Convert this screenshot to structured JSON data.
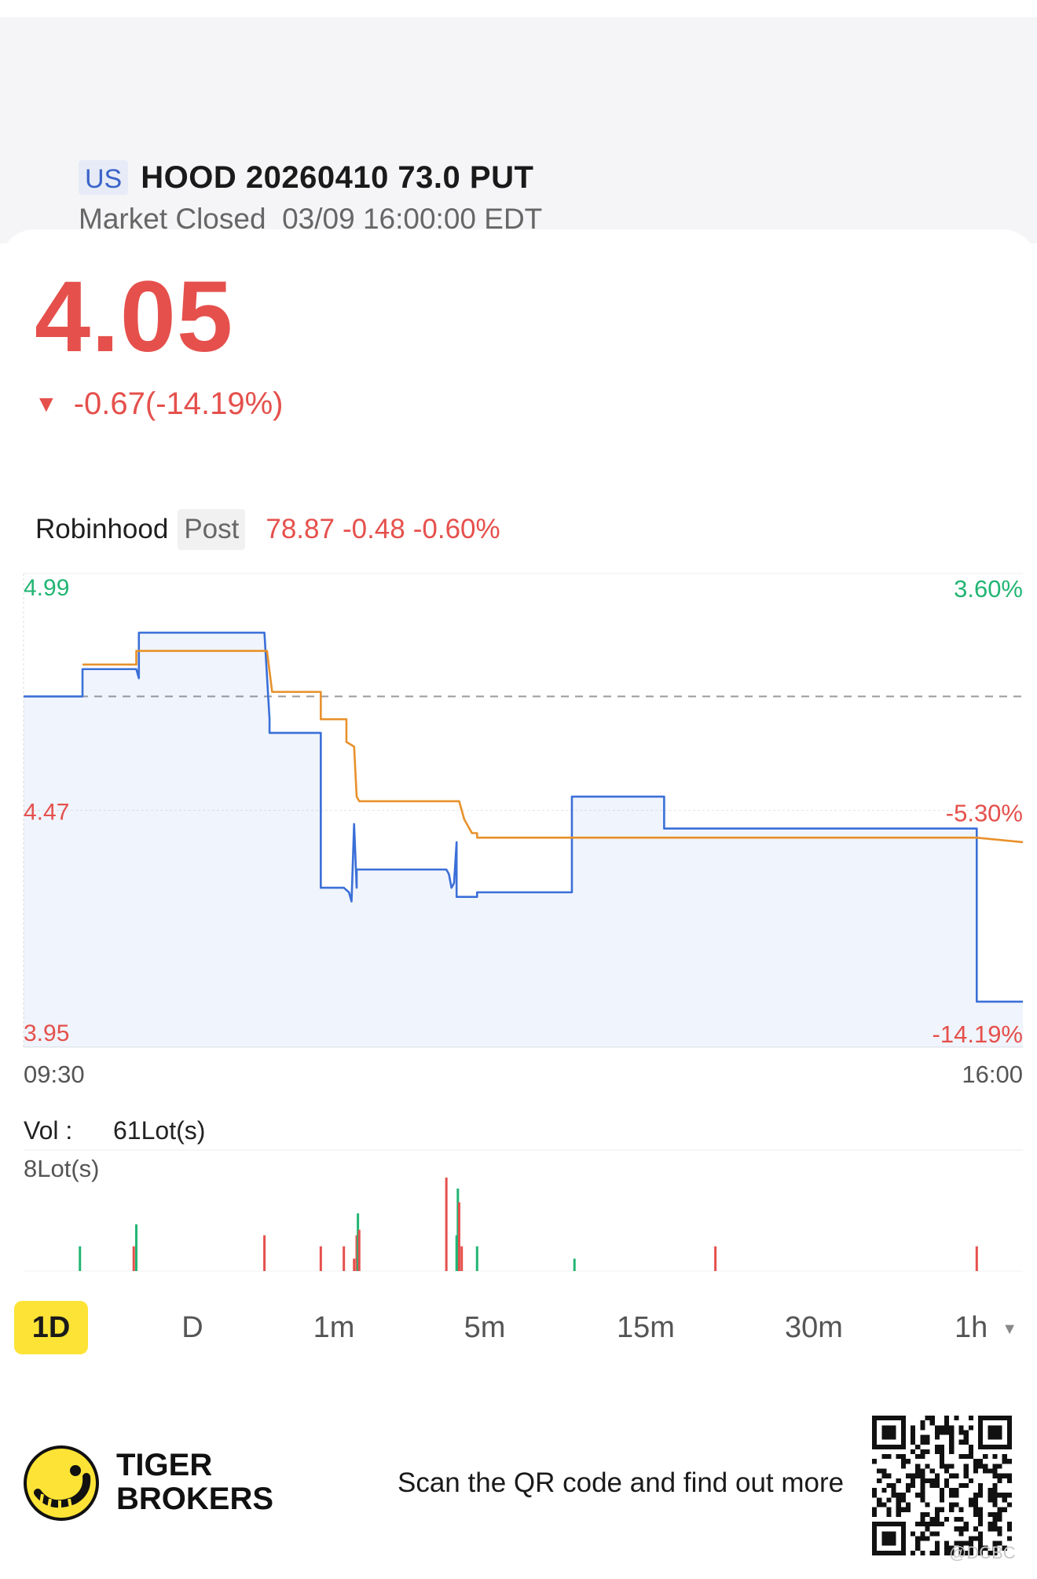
{
  "header": {
    "market": "US",
    "title": "HOOD 20260410 73.0 PUT",
    "status": "Market Closed",
    "timestamp": "03/09 16:00:00 EDT"
  },
  "quote": {
    "price": "4.05",
    "change": "-0.67(-14.19%)",
    "direction": "down",
    "color": "#e5504c"
  },
  "underlying": {
    "name": "Robinhood",
    "session": "Post",
    "price": "78.87",
    "change": "-0.48",
    "change_pct": "-0.60%"
  },
  "chart_data": {
    "type": "line",
    "x_start": "09:30",
    "x_end": "16:00",
    "ylim": [
      3.95,
      4.99
    ],
    "y_ticks_left": [
      "4.99",
      "4.47",
      "3.95"
    ],
    "y_ticks_right": [
      "3.60%",
      "-5.30%",
      "-14.19%"
    ],
    "prev_close": 4.72,
    "grid": true,
    "series": [
      {
        "color": "#3a6fd8",
        "fill": true,
        "x": [
          "09:30",
          "09:53",
          "09:53",
          "10:14",
          "10:15",
          "10:15",
          "11:04",
          "11:06",
          "11:06",
          "11:26",
          "11:26",
          "11:35",
          "11:37",
          "11:38",
          "11:39",
          "11:40",
          "11:40",
          "12:15",
          "12:16",
          "12:17",
          "12:18",
          "12:19",
          "12:19",
          "12:27",
          "12:27",
          "13:04",
          "13:04",
          "13:40",
          "13:40",
          "15:42",
          "15:42",
          "16:00"
        ],
        "values": [
          4.72,
          4.72,
          4.78,
          4.78,
          4.76,
          4.86,
          4.86,
          4.67,
          4.64,
          4.64,
          4.3,
          4.3,
          4.29,
          4.27,
          4.44,
          4.3,
          4.34,
          4.34,
          4.33,
          4.3,
          4.31,
          4.4,
          4.28,
          4.28,
          4.29,
          4.29,
          4.5,
          4.5,
          4.43,
          4.43,
          4.05,
          4.05
        ]
      },
      {
        "color": "#e8912b",
        "fill": false,
        "x": [
          "09:53",
          "10:14",
          "10:14",
          "11:05",
          "11:07",
          "11:26",
          "11:26",
          "11:36",
          "11:36",
          "11:39",
          "11:40",
          "11:41",
          "12:20",
          "12:22",
          "12:25",
          "12:27",
          "12:27",
          "13:04",
          "13:04",
          "15:42",
          "15:42",
          "16:00"
        ],
        "values": [
          4.79,
          4.79,
          4.82,
          4.82,
          4.73,
          4.73,
          4.67,
          4.67,
          4.62,
          4.61,
          4.5,
          4.49,
          4.49,
          4.45,
          4.42,
          4.42,
          4.41,
          4.41,
          4.41,
          4.41,
          4.41,
          4.4
        ]
      }
    ]
  },
  "volume": {
    "label": "Vol :",
    "total": "61Lot(s)",
    "max_label": "8Lot(s)",
    "max": 8,
    "bars": [
      {
        "t": "09:52",
        "v": 1.8,
        "c": "#22b573"
      },
      {
        "t": "10:13",
        "v": 1.8,
        "c": "#e5504c"
      },
      {
        "t": "10:14",
        "v": 3.4,
        "c": "#22b573"
      },
      {
        "t": "11:04",
        "v": 2.6,
        "c": "#e5504c"
      },
      {
        "t": "11:26",
        "v": 1.8,
        "c": "#e5504c"
      },
      {
        "t": "11:35",
        "v": 1.8,
        "c": "#e5504c"
      },
      {
        "t": "11:39",
        "v": 0.9,
        "c": "#e5504c"
      },
      {
        "t": "11:40",
        "v": 2.6,
        "c": "#e5504c"
      },
      {
        "t": "11:40.5",
        "v": 4.2,
        "c": "#22b573"
      },
      {
        "t": "11:41",
        "v": 3.0,
        "c": "#e5504c"
      },
      {
        "t": "12:15",
        "v": 6.8,
        "c": "#e5504c"
      },
      {
        "t": "12:19",
        "v": 2.6,
        "c": "#22b573"
      },
      {
        "t": "12:19.5",
        "v": 6.0,
        "c": "#22b573"
      },
      {
        "t": "12:20",
        "v": 5.0,
        "c": "#e5504c"
      },
      {
        "t": "12:21",
        "v": 1.8,
        "c": "#e5504c"
      },
      {
        "t": "12:27",
        "v": 1.8,
        "c": "#22b573"
      },
      {
        "t": "13:05",
        "v": 0.9,
        "c": "#22b573"
      },
      {
        "t": "14:00",
        "v": 1.8,
        "c": "#e5504c"
      },
      {
        "t": "15:42",
        "v": 1.8,
        "c": "#e5504c"
      }
    ]
  },
  "tabs": {
    "items": [
      {
        "label": "1D",
        "active": true
      },
      {
        "label": "D",
        "active": false
      },
      {
        "label": "1m",
        "active": false
      },
      {
        "label": "5m",
        "active": false
      },
      {
        "label": "15m",
        "active": false
      },
      {
        "label": "30m",
        "active": false
      },
      {
        "label": "1h",
        "active": false
      }
    ]
  },
  "footer": {
    "brand_line1": "TIGER",
    "brand_line2": "BROKERS",
    "scan_text": "Scan the QR code and find out more",
    "watermark": "@DCBC"
  },
  "colors": {
    "up": "#22b573",
    "down": "#e5504c",
    "line_blue": "#3a6fd8",
    "line_orange": "#e8912b",
    "accent_yellow": "#fde335"
  }
}
